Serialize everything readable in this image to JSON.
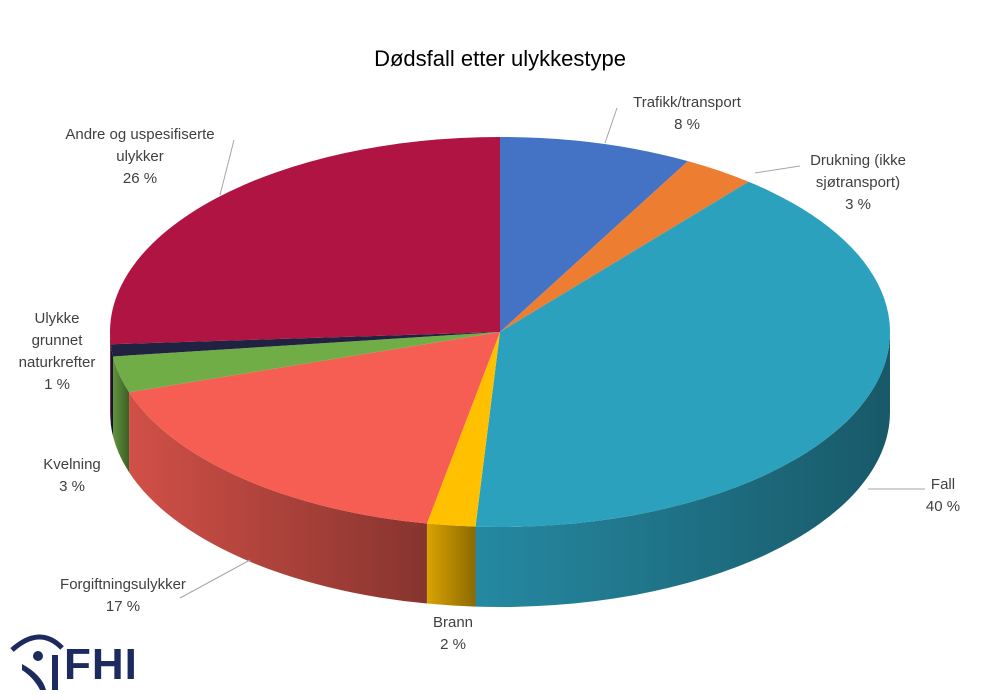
{
  "chart_data": {
    "type": "pie3d",
    "title": "Dødsfall etter ulykkestype",
    "categories": [
      "Trafikk/transport",
      "Drukning (ikke sjøtransport)",
      "Fall",
      "Brann",
      "Forgiftningsulykker",
      "Kvelning",
      "Ulykke grunnet naturkrefter",
      "Andre og uspesifiserte ulykker"
    ],
    "values": [
      8,
      3,
      40,
      2,
      17,
      3,
      1,
      26
    ],
    "value_labels": [
      "8 %",
      "3 %",
      "40 %",
      "2 %",
      "17 %",
      "3 %",
      "1 %",
      "26 %"
    ],
    "colors": [
      "#4472c4",
      "#ed7d31",
      "#2ca1be",
      "#ffc000",
      "#f65e54",
      "#70ad47",
      "#1f2240",
      "#b01442"
    ]
  },
  "logo": "FHI"
}
